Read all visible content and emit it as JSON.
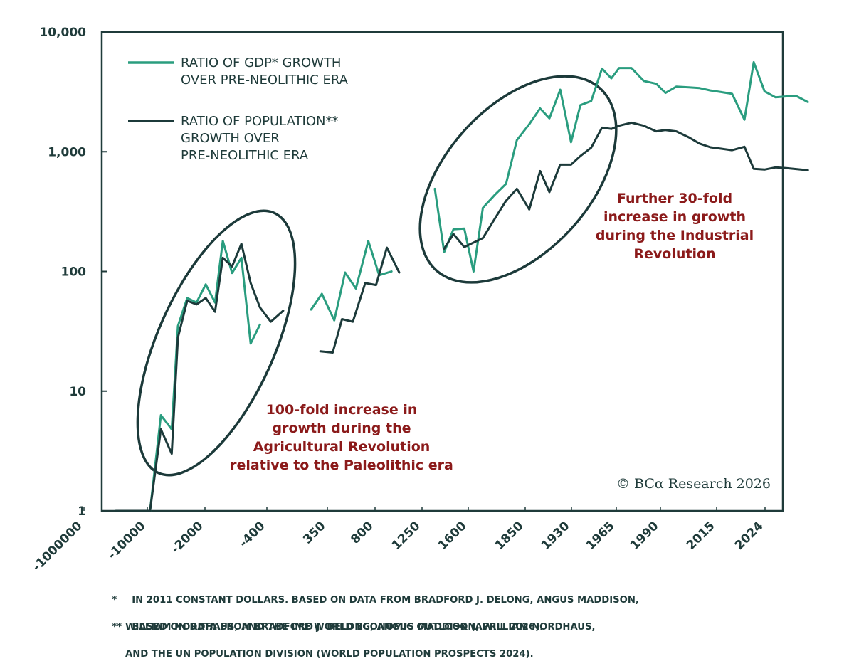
{
  "chart_data": {
    "type": "line",
    "y_scale": "log",
    "ylim": [
      1,
      10000
    ],
    "y_ticks": [
      "1",
      "10",
      "100",
      "1,000",
      "10,000"
    ],
    "x_tick_labels": [
      "-1000000",
      "-10000",
      "-2000",
      "-400",
      "350",
      "800",
      "1250",
      "1600",
      "1850",
      "1930",
      "1965",
      "1990",
      "2015",
      "2024"
    ],
    "grid": false,
    "legend_position": "top-left",
    "series": [
      {
        "name": "RATIO OF GDP* GROWTH OVER PRE-NEOLITHIC ERA",
        "label_lines": [
          "RATIO OF GDP* GROWTH",
          "OVER PRE-NEOLITHIC ERA"
        ],
        "color": "#2a9d7f",
        "segments": [
          [
            [
              0,
              1
            ],
            [
              1.1,
              1
            ],
            [
              1.45,
              6.3
            ],
            [
              1.8,
              4.8
            ],
            [
              2.0,
              35
            ],
            [
              2.3,
              60
            ],
            [
              2.6,
              55
            ],
            [
              2.9,
              78
            ],
            [
              3.2,
              55
            ],
            [
              3.45,
              180
            ],
            [
              3.75,
              97
            ],
            [
              4.05,
              130
            ],
            [
              4.35,
              25
            ],
            [
              4.65,
              36
            ]
          ],
          [
            [
              6.3,
              48
            ],
            [
              6.65,
              65
            ],
            [
              7.05,
              39
            ],
            [
              7.4,
              98
            ],
            [
              7.75,
              72
            ],
            [
              8.15,
              180
            ],
            [
              8.5,
              93
            ],
            [
              8.9,
              100
            ]
          ],
          [
            [
              10.3,
              490
            ],
            [
              10.6,
              145
            ],
            [
              10.9,
              225
            ],
            [
              11.25,
              228
            ],
            [
              11.55,
              100
            ],
            [
              11.85,
              340
            ],
            [
              12.25,
              440
            ],
            [
              12.6,
              540
            ],
            [
              12.95,
              1250
            ],
            [
              13.35,
              1700
            ],
            [
              13.7,
              2300
            ],
            [
              14.0,
              1900
            ],
            [
              14.35,
              3300
            ],
            [
              14.7,
              1200
            ],
            [
              15.0,
              2450
            ],
            [
              15.35,
              2650
            ],
            [
              15.7,
              4950
            ],
            [
              16.0,
              4100
            ],
            [
              16.25,
              5000
            ],
            [
              16.65,
              5000
            ],
            [
              17.05,
              3900
            ],
            [
              17.45,
              3700
            ],
            [
              17.75,
              3100
            ],
            [
              18.1,
              3500
            ],
            [
              18.5,
              3450
            ],
            [
              18.85,
              3400
            ],
            [
              19.2,
              3250
            ],
            [
              19.55,
              3150
            ],
            [
              19.9,
              3050
            ],
            [
              20.3,
              1850
            ],
            [
              20.6,
              5600
            ],
            [
              20.95,
              3200
            ],
            [
              21.3,
              2850
            ],
            [
              21.65,
              2900
            ],
            [
              22.0,
              2900
            ],
            [
              22.35,
              2600
            ]
          ]
        ]
      },
      {
        "name": "RATIO OF POPULATION** GROWTH OVER PRE-NEOLITHIC ERA",
        "label_lines": [
          "RATIO OF POPULATION**",
          "GROWTH OVER",
          "PRE-NEOLITHIC ERA"
        ],
        "color": "#1c3a3a",
        "segments": [
          [
            [
              0,
              1
            ],
            [
              1.1,
              1
            ],
            [
              1.45,
              4.8
            ],
            [
              1.8,
              3.0
            ],
            [
              2.0,
              28
            ],
            [
              2.3,
              57
            ],
            [
              2.6,
              53
            ],
            [
              2.9,
              60
            ],
            [
              3.2,
              46
            ],
            [
              3.45,
              130
            ],
            [
              3.75,
              110
            ],
            [
              4.05,
              170
            ],
            [
              4.35,
              80
            ],
            [
              4.65,
              50
            ],
            [
              5.0,
              38
            ],
            [
              5.4,
              47
            ]
          ],
          [
            [
              6.6,
              21.5
            ],
            [
              7.0,
              21
            ],
            [
              7.3,
              40
            ],
            [
              7.65,
              38
            ],
            [
              8.05,
              80
            ],
            [
              8.4,
              77
            ],
            [
              8.75,
              158
            ],
            [
              9.15,
              98
            ]
          ],
          [
            [
              10.6,
              155
            ],
            [
              10.9,
              205
            ],
            [
              11.25,
              160
            ],
            [
              11.85,
              190
            ],
            [
              12.25,
              280
            ],
            [
              12.6,
              390
            ],
            [
              12.95,
              490
            ],
            [
              13.35,
              330
            ],
            [
              13.7,
              690
            ],
            [
              14.0,
              460
            ],
            [
              14.35,
              780
            ],
            [
              14.7,
              780
            ],
            [
              15.0,
              920
            ],
            [
              15.35,
              1080
            ],
            [
              15.7,
              1590
            ],
            [
              16.0,
              1550
            ],
            [
              16.25,
              1650
            ],
            [
              16.65,
              1750
            ],
            [
              17.05,
              1650
            ],
            [
              17.45,
              1480
            ],
            [
              17.75,
              1520
            ],
            [
              18.1,
              1480
            ],
            [
              18.5,
              1320
            ],
            [
              18.85,
              1170
            ],
            [
              19.2,
              1090
            ],
            [
              19.55,
              1060
            ],
            [
              19.9,
              1030
            ],
            [
              20.3,
              1100
            ],
            [
              20.6,
              720
            ],
            [
              20.95,
              710
            ],
            [
              21.3,
              740
            ],
            [
              21.65,
              730
            ],
            [
              22.0,
              715
            ],
            [
              22.35,
              700
            ]
          ]
        ]
      }
    ],
    "annotations": [
      [
        "100-fold increase in",
        "growth during the",
        "Agricultural Revolution",
        "relative to the Paleolithic era"
      ],
      [
        "Further 30-fold",
        "increase in growth",
        "during the Industrial",
        "Revolution"
      ]
    ],
    "credit": "© BCα Research 2026"
  },
  "footnotes": [
    {
      "mark": "*",
      "line1": "IN 2011 CONSTANT DOLLARS. BASED ON DATA FROM BRADFORD J. DELONG, ANGUS MADDISON,",
      "line2": "WILLIAM NORDHAUS, AND THE IMF WORLD ECONOMIC OUTLOOK (APRIL 2026)."
    },
    {
      "mark": "**",
      "line1": "BASED ON DATA FROM BRADFORD J. DELONG, ANGUS MADDISON, WILLIAM NORDHAUS,",
      "line2": "AND THE UN POPULATION DIVISION (WORLD POPULATION PROSPECTS 2024)."
    }
  ]
}
